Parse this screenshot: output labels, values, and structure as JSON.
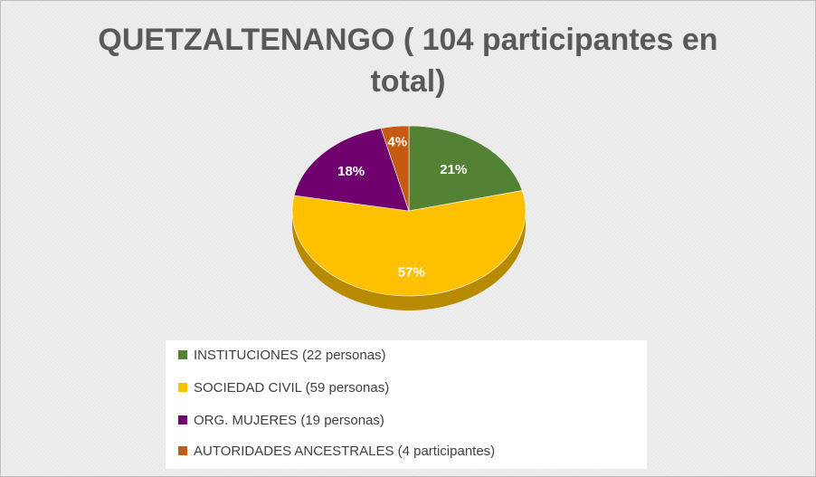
{
  "chart_data": {
    "type": "pie",
    "title_lines": [
      "QUETZALTENANGO ( 104 participantes en",
      "total)"
    ],
    "slices": [
      {
        "label": "INSTITUCIONES (22 personas)",
        "value": 22,
        "percent_label": "21%",
        "color": "#548235"
      },
      {
        "label": "SOCIEDAD CIVIL (59 personas)",
        "value": 59,
        "percent_label": "57%",
        "color": "#FFC000"
      },
      {
        "label": "ORG. MUJERES (19 personas)",
        "value": 19,
        "percent_label": "18%",
        "color": "#70006E"
      },
      {
        "label": "AUTORIDADES ANCESTRALES (4 participantes)",
        "value": 4,
        "percent_label": "4%",
        "color": "#C55A11"
      }
    ],
    "legend_position": "bottom",
    "style": "3d"
  }
}
